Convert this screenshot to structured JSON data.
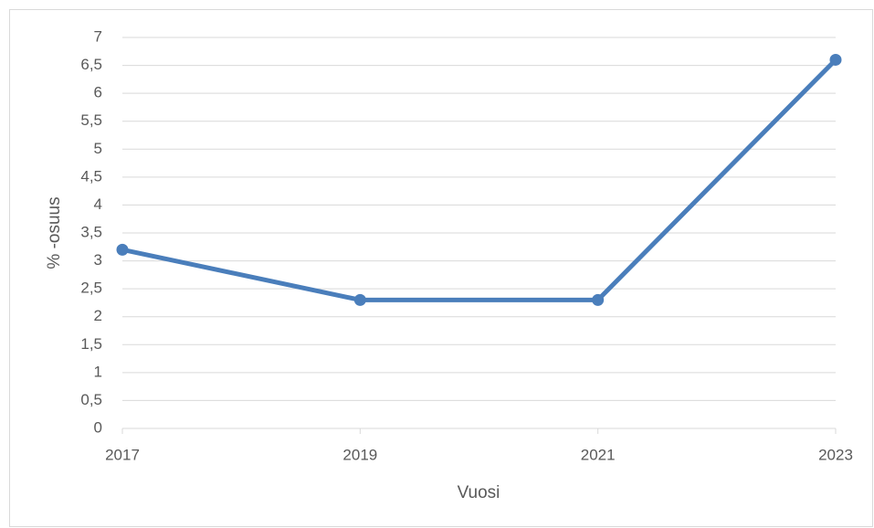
{
  "chart_data": {
    "type": "line",
    "x_label": "Vuosi",
    "y_label": "% -osuus",
    "categories": [
      "2017",
      "2019",
      "2021",
      "2023"
    ],
    "series": [
      {
        "name": "osuus",
        "color": "#4a7ebb",
        "values": [
          3.2,
          2.3,
          2.3,
          6.6
        ]
      }
    ],
    "ylim": [
      0,
      7
    ],
    "yticks": [
      0,
      {
        "value": 0.5,
        "label": "0,5"
      },
      1,
      {
        "value": 1.5,
        "label": "1,5"
      },
      2,
      {
        "value": 2.5,
        "label": "2,5"
      },
      3,
      {
        "value": 3.5,
        "label": "3,5"
      },
      4,
      {
        "value": 4.5,
        "label": "4,5"
      },
      5,
      {
        "value": 5.5,
        "label": "5,5"
      },
      6,
      {
        "value": 6.5,
        "label": "6,5"
      },
      7
    ],
    "grid": true
  }
}
